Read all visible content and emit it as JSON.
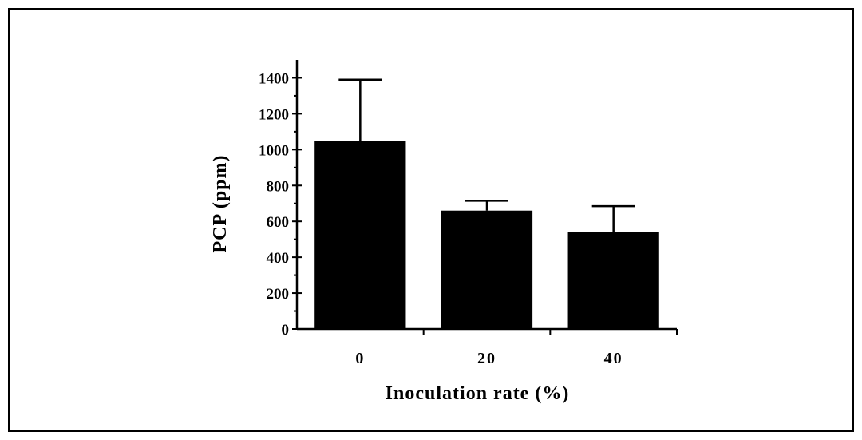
{
  "chart_data": {
    "type": "bar",
    "categories": [
      "0",
      "20",
      "40"
    ],
    "values": [
      1050,
      660,
      540
    ],
    "error_upper": [
      1390,
      715,
      685
    ],
    "xlabel": "Inoculation rate (%)",
    "ylabel": "PCP (ppm)",
    "ylim": [
      0,
      1500
    ],
    "yticks": [
      0,
      200,
      400,
      600,
      800,
      1000,
      1200,
      1400
    ],
    "ytick_labels": [
      "0",
      "200",
      "400",
      "600",
      "800",
      "1000",
      "1200",
      "1400"
    ],
    "grid": false,
    "legend": "none",
    "bar_color": "#000000"
  }
}
